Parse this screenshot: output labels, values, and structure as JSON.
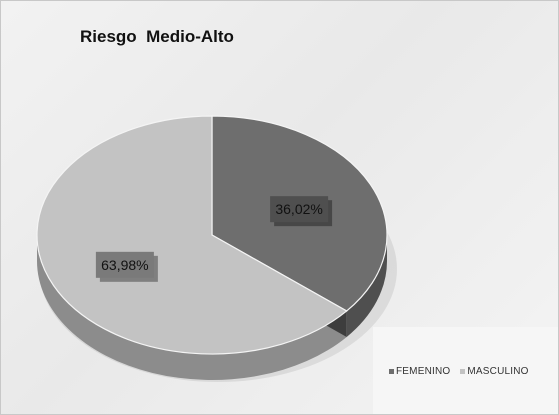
{
  "chart_data": {
    "type": "pie",
    "title": "Riesgo  Medio-Alto",
    "categories": [
      "FEMENINO",
      "MASCULINO"
    ],
    "values": [
      36.02,
      63.98
    ],
    "labels": [
      "36,02%",
      "63,98%"
    ],
    "colors": [
      "#6e6e6e",
      "#c3c3c3"
    ],
    "legend_position": "bottom-right",
    "style": "3d"
  }
}
